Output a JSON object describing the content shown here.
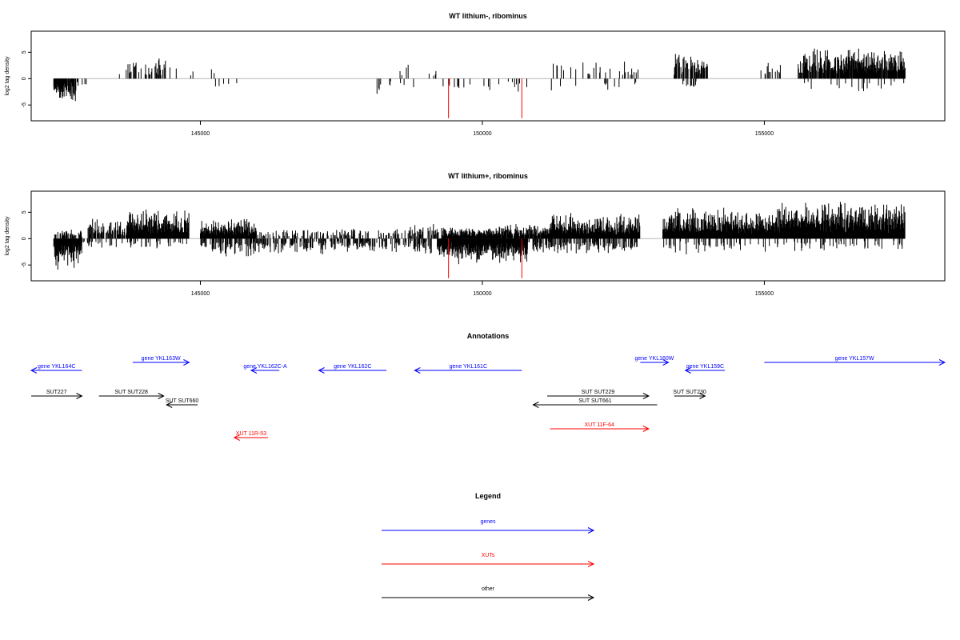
{
  "colors": {
    "gene": "#0000ff",
    "xut": "#ff0000",
    "other": "#000000",
    "zero_line": "#b8b8b8",
    "highlight": "#ff0000"
  },
  "chart_data": [
    {
      "type": "bar",
      "title": "WT lithium-, ribominus",
      "ylabel": "log2 tag density",
      "xlim": [
        142000,
        158200
      ],
      "ylim": [
        -8,
        9
      ],
      "yticks": [
        -5,
        0,
        5
      ],
      "xticks": [
        145000,
        150000,
        155000
      ],
      "highlight_positions": [
        149400,
        150700
      ],
      "pos_segments": [
        {
          "from": 143500,
          "to": 144500,
          "density": 0.25,
          "max": 4
        },
        {
          "from": 144500,
          "to": 145300,
          "density": 0.08,
          "max": 3
        },
        {
          "from": 148500,
          "to": 148700,
          "density": 0.1,
          "max": 3
        },
        {
          "from": 149000,
          "to": 149500,
          "density": 0.06,
          "max": 2
        },
        {
          "from": 151200,
          "to": 152800,
          "density": 0.15,
          "max": 3.5
        },
        {
          "from": 153400,
          "to": 154000,
          "density": 0.7,
          "max": 5
        },
        {
          "from": 154900,
          "to": 155300,
          "density": 0.3,
          "max": 3.5
        },
        {
          "from": 155600,
          "to": 157500,
          "density": 0.9,
          "max": 6
        }
      ],
      "neg_segments": [
        {
          "from": 142400,
          "to": 142800,
          "density": 0.9,
          "max": 5
        },
        {
          "from": 142800,
          "to": 143000,
          "density": 0.3,
          "max": 2
        },
        {
          "from": 145100,
          "to": 145800,
          "density": 0.05,
          "max": 2.5
        },
        {
          "from": 148100,
          "to": 148800,
          "density": 0.08,
          "max": 3
        },
        {
          "from": 149200,
          "to": 149700,
          "density": 0.15,
          "max": 3
        },
        {
          "from": 149700,
          "to": 150800,
          "density": 0.12,
          "max": 3
        },
        {
          "from": 151200,
          "to": 152800,
          "density": 0.08,
          "max": 3
        },
        {
          "from": 153500,
          "to": 153800,
          "density": 0.3,
          "max": 2.5
        },
        {
          "from": 155600,
          "to": 157500,
          "density": 0.08,
          "max": 2.5
        }
      ]
    },
    {
      "type": "bar",
      "title": "WT lithium+, ribominus",
      "ylabel": "log2 tag density",
      "xlim": [
        142000,
        158200
      ],
      "ylim": [
        -8,
        9
      ],
      "yticks": [
        -5,
        0,
        5
      ],
      "xticks": [
        145000,
        150000,
        155000
      ],
      "highlight_positions": [
        149400,
        150700
      ],
      "pos_segments": [
        {
          "from": 142400,
          "to": 142900,
          "density": 0.6,
          "max": 2
        },
        {
          "from": 143000,
          "to": 143700,
          "density": 0.6,
          "max": 4
        },
        {
          "from": 143700,
          "to": 144800,
          "density": 1.0,
          "max": 6
        },
        {
          "from": 145000,
          "to": 146000,
          "density": 1.0,
          "max": 4
        },
        {
          "from": 146000,
          "to": 148500,
          "density": 0.3,
          "max": 2
        },
        {
          "from": 148500,
          "to": 149300,
          "density": 0.5,
          "max": 3
        },
        {
          "from": 149300,
          "to": 150300,
          "density": 1.0,
          "max": 2.5
        },
        {
          "from": 150300,
          "to": 151200,
          "density": 0.9,
          "max": 3
        },
        {
          "from": 151200,
          "to": 152800,
          "density": 1.0,
          "max": 5
        },
        {
          "from": 153200,
          "to": 155300,
          "density": 1.0,
          "max": 6
        },
        {
          "from": 155300,
          "to": 157500,
          "density": 1.0,
          "max": 7.5
        }
      ],
      "neg_segments": [
        {
          "from": 142400,
          "to": 142900,
          "density": 1.0,
          "max": 6
        },
        {
          "from": 142900,
          "to": 143500,
          "density": 0.3,
          "max": 2
        },
        {
          "from": 143500,
          "to": 144800,
          "density": 0.2,
          "max": 2
        },
        {
          "from": 145000,
          "to": 146000,
          "density": 0.5,
          "max": 3.5
        },
        {
          "from": 146000,
          "to": 149100,
          "density": 0.5,
          "max": 3
        },
        {
          "from": 149200,
          "to": 149500,
          "density": 1.0,
          "max": 4
        },
        {
          "from": 149500,
          "to": 150800,
          "density": 1.0,
          "max": 5
        },
        {
          "from": 150800,
          "to": 152800,
          "density": 0.5,
          "max": 3
        },
        {
          "from": 153200,
          "to": 155300,
          "density": 0.2,
          "max": 3
        },
        {
          "from": 155300,
          "to": 157500,
          "density": 0.2,
          "max": 2.5
        }
      ]
    }
  ],
  "annotations": {
    "title": "Annotations",
    "features": [
      {
        "label": "gene YKL164C",
        "kind": "gene",
        "strand": "-",
        "start": 142000,
        "end": 142900,
        "row": 2
      },
      {
        "label": "gene YKL163W",
        "kind": "gene",
        "strand": "+",
        "start": 143800,
        "end": 144800,
        "row": 1
      },
      {
        "label": "gene YKL162C-A",
        "kind": "gene",
        "strand": "-",
        "start": 145900,
        "end": 146400,
        "row": 2
      },
      {
        "label": "gene YKL162C",
        "kind": "gene",
        "strand": "-",
        "start": 147100,
        "end": 148300,
        "row": 2
      },
      {
        "label": "gene YKL161C",
        "kind": "gene",
        "strand": "-",
        "start": 148800,
        "end": 150700,
        "row": 2
      },
      {
        "label": "gene YKL160W",
        "kind": "gene",
        "strand": "+",
        "start": 152800,
        "end": 153300,
        "row": 1
      },
      {
        "label": "gene YKL159C",
        "kind": "gene",
        "strand": "-",
        "start": 153600,
        "end": 154300,
        "row": 2
      },
      {
        "label": "gene YKL157W",
        "kind": "gene",
        "strand": "+",
        "start": 155000,
        "end": 158300,
        "row": 1
      },
      {
        "label": "SUT227",
        "kind": "other",
        "strand": "+",
        "start": 142000,
        "end": 142900,
        "row": 4
      },
      {
        "label": "SUT SUT228",
        "kind": "other",
        "strand": "+",
        "start": 143200,
        "end": 144350,
        "row": 4
      },
      {
        "label": "SUT SUT660",
        "kind": "other",
        "strand": "-",
        "start": 144400,
        "end": 144950,
        "row": 5
      },
      {
        "label": "SUT SUT229",
        "kind": "other",
        "strand": "+",
        "start": 151150,
        "end": 152950,
        "row": 4
      },
      {
        "label": "SUT SUT661",
        "kind": "other",
        "strand": "-",
        "start": 150900,
        "end": 153100,
        "row": 5
      },
      {
        "label": "SUT SUT230",
        "kind": "other",
        "strand": "+",
        "start": 153400,
        "end": 153950,
        "row": 4
      },
      {
        "label": "XUT 11R-53",
        "kind": "xut",
        "strand": "-",
        "start": 145600,
        "end": 146200,
        "row": 7
      },
      {
        "label": "XUT 11F-64",
        "kind": "xut",
        "strand": "+",
        "start": 151200,
        "end": 152950,
        "row": 6
      }
    ]
  },
  "legend": {
    "title": "Legend",
    "items": [
      {
        "label": "genes",
        "kind": "gene"
      },
      {
        "label": "XUTs",
        "kind": "xut"
      },
      {
        "label": "other",
        "kind": "other"
      }
    ]
  }
}
